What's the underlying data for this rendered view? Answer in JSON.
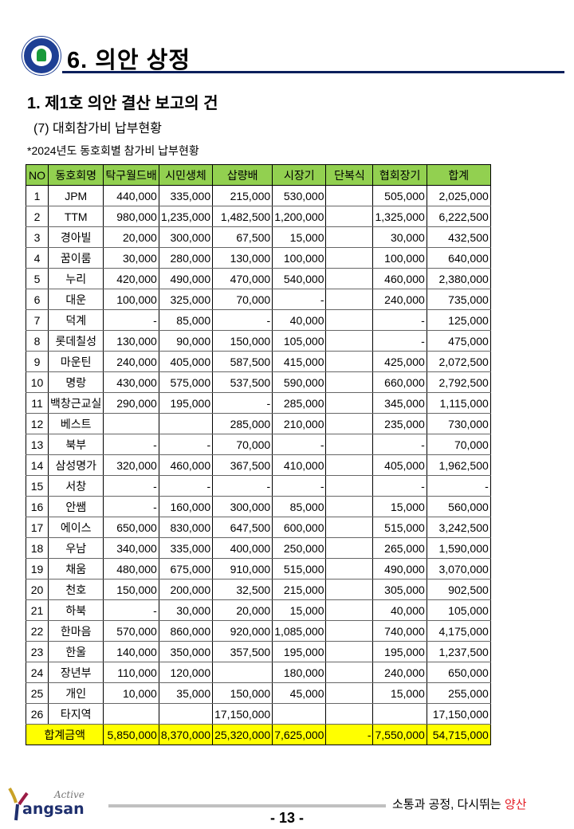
{
  "header": {
    "title": "6. 의안 상정"
  },
  "section": {
    "heading": "1. 제1호 의안 결산 보고의 건",
    "subheading": "(7) 대회참가비 납부현황",
    "note": "*2024년도 동호회별 참가비 납부현황"
  },
  "table": {
    "columns": [
      "NO",
      "동호회명",
      "탁구월드배",
      "시민생체",
      "삽량배",
      "시장기",
      "단복식",
      "협회장기",
      "합계"
    ],
    "rows": [
      [
        "1",
        "JPM",
        "440,000",
        "335,000",
        "215,000",
        "530,000",
        "",
        "505,000",
        "2,025,000"
      ],
      [
        "2",
        "TTM",
        "980,000",
        "1,235,000",
        "1,482,500",
        "1,200,000",
        "",
        "1,325,000",
        "6,222,500"
      ],
      [
        "3",
        "경아빌",
        "20,000",
        "300,000",
        "67,500",
        "15,000",
        "",
        "30,000",
        "432,500"
      ],
      [
        "4",
        "꿈이룸",
        "30,000",
        "280,000",
        "130,000",
        "100,000",
        "",
        "100,000",
        "640,000"
      ],
      [
        "5",
        "누리",
        "420,000",
        "490,000",
        "470,000",
        "540,000",
        "",
        "460,000",
        "2,380,000"
      ],
      [
        "6",
        "대운",
        "100,000",
        "325,000",
        "70,000",
        "-",
        "",
        "240,000",
        "735,000"
      ],
      [
        "7",
        "덕계",
        "-",
        "85,000",
        "-",
        "40,000",
        "",
        "-",
        "125,000"
      ],
      [
        "8",
        "롯데칠성",
        "130,000",
        "90,000",
        "150,000",
        "105,000",
        "",
        "-",
        "475,000"
      ],
      [
        "9",
        "마운틴",
        "240,000",
        "405,000",
        "587,500",
        "415,000",
        "",
        "425,000",
        "2,072,500"
      ],
      [
        "10",
        "명랑",
        "430,000",
        "575,000",
        "537,500",
        "590,000",
        "",
        "660,000",
        "2,792,500"
      ],
      [
        "11",
        "백창근교실",
        "290,000",
        "195,000",
        "-",
        "285,000",
        "",
        "345,000",
        "1,115,000"
      ],
      [
        "12",
        "베스트",
        "",
        "",
        "285,000",
        "210,000",
        "",
        "235,000",
        "730,000"
      ],
      [
        "13",
        "북부",
        "-",
        "-",
        "70,000",
        "-",
        "",
        "-",
        "70,000"
      ],
      [
        "14",
        "삼성명가",
        "320,000",
        "460,000",
        "367,500",
        "410,000",
        "",
        "405,000",
        "1,962,500"
      ],
      [
        "15",
        "서창",
        "-",
        "-",
        "-",
        "-",
        "",
        "-",
        "-"
      ],
      [
        "16",
        "안쌤",
        "-",
        "160,000",
        "300,000",
        "85,000",
        "",
        "15,000",
        "560,000"
      ],
      [
        "17",
        "에이스",
        "650,000",
        "830,000",
        "647,500",
        "600,000",
        "",
        "515,000",
        "3,242,500"
      ],
      [
        "18",
        "우남",
        "340,000",
        "335,000",
        "400,000",
        "250,000",
        "",
        "265,000",
        "1,590,000"
      ],
      [
        "19",
        "채움",
        "480,000",
        "675,000",
        "910,000",
        "515,000",
        "",
        "490,000",
        "3,070,000"
      ],
      [
        "20",
        "천호",
        "150,000",
        "200,000",
        "32,500",
        "215,000",
        "",
        "305,000",
        "902,500"
      ],
      [
        "21",
        "하북",
        "-",
        "30,000",
        "20,000",
        "15,000",
        "",
        "40,000",
        "105,000"
      ],
      [
        "22",
        "한마음",
        "570,000",
        "860,000",
        "920,000",
        "1,085,000",
        "",
        "740,000",
        "4,175,000"
      ],
      [
        "23",
        "한울",
        "140,000",
        "350,000",
        "357,500",
        "195,000",
        "",
        "195,000",
        "1,237,500"
      ],
      [
        "24",
        "장년부",
        "110,000",
        "120,000",
        "",
        "180,000",
        "",
        "240,000",
        "650,000"
      ],
      [
        "25",
        "개인",
        "10,000",
        "35,000",
        "150,000",
        "45,000",
        "",
        "15,000",
        "255,000"
      ],
      [
        "26",
        "타지역",
        "",
        "",
        "17,150,000",
        "",
        "",
        "",
        "17,150,000"
      ]
    ],
    "total": {
      "label": "합계금액",
      "values": [
        "5,850,000",
        "8,370,000",
        "25,320,000",
        "7,625,000",
        "-",
        "7,550,000",
        "54,715,000"
      ]
    },
    "header_color": "#92d050",
    "total_color": "#ffff00"
  },
  "footer": {
    "logo_text": "Active Yangsan",
    "slogan": "소통과 공정, 다시뛰는",
    "slogan_highlight": "양산",
    "page_number": "- 13 -"
  }
}
